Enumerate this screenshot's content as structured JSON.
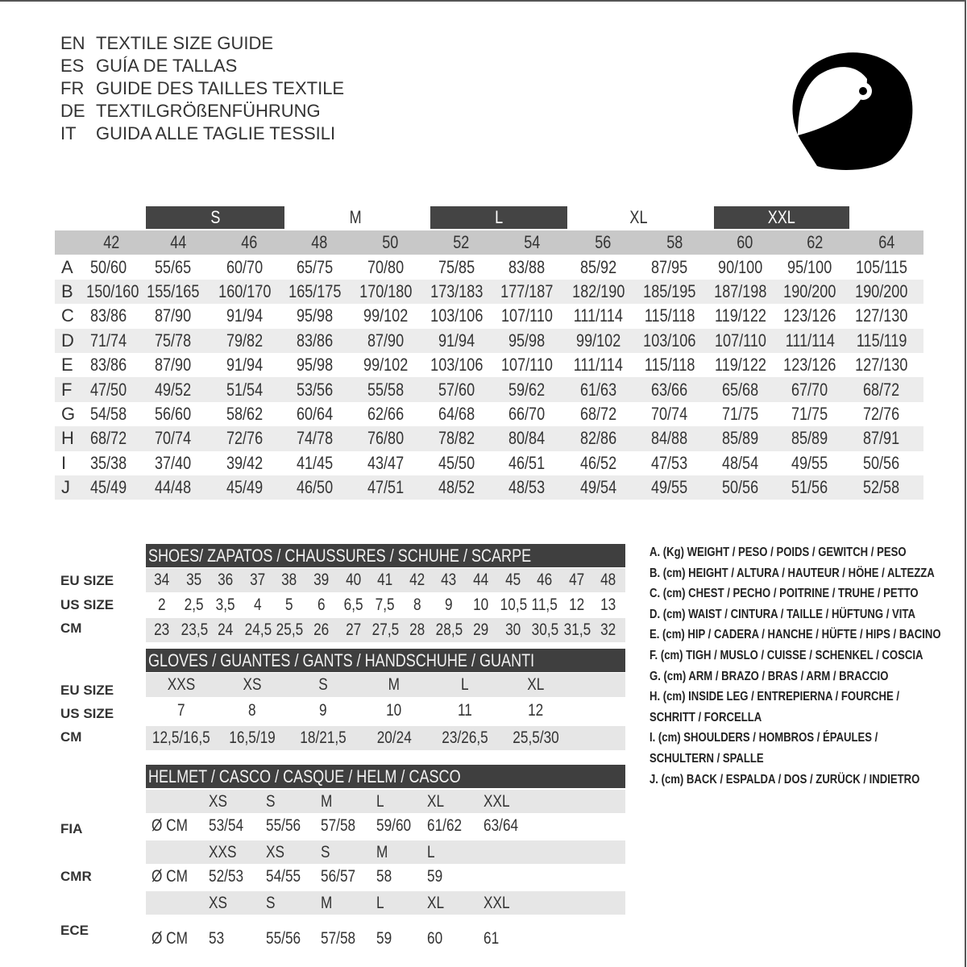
{
  "titles": [
    {
      "code": "EN",
      "text": "TEXTILE SIZE GUIDE"
    },
    {
      "code": "ES",
      "text": "GUÍA DE TALLAS"
    },
    {
      "code": "FR",
      "text": "GUIDE DES TAILLES TEXTILE"
    },
    {
      "code": "DE",
      "text": "TEXTILGRÖßENFÜHRUNG"
    },
    {
      "code": "IT",
      "text": "GUIDA ALLE TAGLIE TESSILI"
    }
  ],
  "icon": "helmet-icon",
  "textile": {
    "size_groups": [
      "S",
      "M",
      "L",
      "XL",
      "XXL"
    ],
    "numbers": [
      "42",
      "44",
      "46",
      "48",
      "50",
      "52",
      "54",
      "56",
      "58",
      "60",
      "62",
      "64"
    ],
    "rows": [
      {
        "label": "A",
        "values": [
          "50/60",
          "55/65",
          "60/70",
          "65/75",
          "70/80",
          "75/85",
          "83/88",
          "85/92",
          "87/95",
          "90/100",
          "95/100",
          "105/115"
        ]
      },
      {
        "label": "B",
        "values": [
          "150/160",
          "155/165",
          "160/170",
          "165/175",
          "170/180",
          "173/183",
          "177/187",
          "182/190",
          "185/195",
          "187/198",
          "190/200",
          "190/200"
        ]
      },
      {
        "label": "C",
        "values": [
          "83/86",
          "87/90",
          "91/94",
          "95/98",
          "99/102",
          "103/106",
          "107/110",
          "111/114",
          "115/118",
          "119/122",
          "123/126",
          "127/130"
        ]
      },
      {
        "label": "D",
        "values": [
          "71/74",
          "75/78",
          "79/82",
          "83/86",
          "87/90",
          "91/94",
          "95/98",
          "99/102",
          "103/106",
          "107/110",
          "111/114",
          "115/119"
        ]
      },
      {
        "label": "E",
        "values": [
          "83/86",
          "87/90",
          "91/94",
          "95/98",
          "99/102",
          "103/106",
          "107/110",
          "111/114",
          "115/118",
          "119/122",
          "123/126",
          "127/130"
        ]
      },
      {
        "label": "F",
        "values": [
          "47/50",
          "49/52",
          "51/54",
          "53/56",
          "55/58",
          "57/60",
          "59/62",
          "61/63",
          "63/66",
          "65/68",
          "67/70",
          "68/72"
        ]
      },
      {
        "label": "G",
        "values": [
          "54/58",
          "56/60",
          "58/62",
          "60/64",
          "62/66",
          "64/68",
          "66/70",
          "68/72",
          "70/74",
          "71/75",
          "71/75",
          "72/76"
        ]
      },
      {
        "label": "H",
        "values": [
          "68/72",
          "70/74",
          "72/76",
          "74/78",
          "76/80",
          "78/82",
          "80/84",
          "82/86",
          "84/88",
          "85/89",
          "85/89",
          "87/91"
        ]
      },
      {
        "label": "I",
        "values": [
          "35/38",
          "37/40",
          "39/42",
          "41/45",
          "43/47",
          "45/50",
          "46/51",
          "46/52",
          "47/53",
          "48/54",
          "49/55",
          "50/56"
        ]
      },
      {
        "label": "J",
        "values": [
          "45/49",
          "44/48",
          "45/49",
          "46/50",
          "47/51",
          "48/52",
          "48/53",
          "49/54",
          "49/55",
          "50/56",
          "51/56",
          "52/58"
        ]
      }
    ]
  },
  "shoes": {
    "title": "SHOES/ ZAPATOS / CHAUSSURES / SCHUHE / SCARPE",
    "labels": [
      "EU SIZE",
      "US SIZE",
      "CM"
    ],
    "rows": [
      [
        "34",
        "35",
        "36",
        "37",
        "38",
        "39",
        "40",
        "41",
        "42",
        "43",
        "44",
        "45",
        "46",
        "47",
        "48"
      ],
      [
        "2",
        "2,5",
        "3,5",
        "4",
        "5",
        "6",
        "6,5",
        "7,5",
        "8",
        "9",
        "10",
        "10,5",
        "11,5",
        "12",
        "13"
      ],
      [
        "23",
        "23,5",
        "24",
        "24,5",
        "25,5",
        "26",
        "27",
        "27,5",
        "28",
        "28,5",
        "29",
        "30",
        "30,5",
        "31,5",
        "32"
      ]
    ]
  },
  "gloves": {
    "title": "GLOVES / GUANTES / GANTS / HANDSCHUHE / GUANTI",
    "labels": [
      "EU SIZE",
      "US SIZE",
      "CM"
    ],
    "rows": [
      [
        "XXS",
        "XS",
        "S",
        "M",
        "L",
        "XL"
      ],
      [
        "7",
        "8",
        "9",
        "10",
        "11",
        "12"
      ],
      [
        "12,5/16,5",
        "16,5/19",
        "18/21,5",
        "20/24",
        "23/26,5",
        "25,5/30"
      ]
    ]
  },
  "helmet": {
    "title": "HELMET / CASCO / CASQUE / HELM / CASCO",
    "unit": "Ø CM",
    "standards": [
      {
        "label": "FIA",
        "sizes": [
          "XS",
          "S",
          "M",
          "L",
          "XL",
          "XXL"
        ],
        "values": [
          "53/54",
          "55/56",
          "57/58",
          "59/60",
          "61/62",
          "63/64"
        ]
      },
      {
        "label": "CMR",
        "sizes": [
          "XXS",
          "XS",
          "S",
          "M",
          "L",
          ""
        ],
        "values": [
          "52/53",
          "54/55",
          "56/57",
          "58",
          "59",
          ""
        ]
      },
      {
        "label": "ECE",
        "sizes": [
          "XS",
          "S",
          "M",
          "L",
          "XL",
          "XXL"
        ],
        "values": [
          "53",
          "55/56",
          "57/58",
          "59",
          "60",
          "61"
        ]
      }
    ]
  },
  "legend": [
    "A. (Kg) WEIGHT / PESO / POIDS / GEWITCH / PESO",
    "B. (cm) HEIGHT / ALTURA / HAUTEUR / HÖHE / ALTEZZA",
    "C. (cm) CHEST / PECHO / POITRINE / TRUHE / PETTO",
    "D. (cm) WAIST / CINTURA / TAILLE / HÜFTUNG / VITA",
    "E. (cm) HIP / CADERA / HANCHE / HÜFTE / HIPS /  BACINO",
    "F.  (cm) TIGH / MUSLO / CUISSE / SCHENKEL / COSCIA",
    "G. (cm) ARM  / BRAZO / BRAS / ARM / BRACCIO",
    "H. (cm) INSIDE LEG / ENTREPIERNA / FOURCHE /",
    "SCHRITT / FORCELLA",
    "I.  (cm) SHOULDERS / HOMBROS / ÉPAULES /",
    "SCHULTERN / SPALLE",
    "J. (cm) BACK / ESPALDA / DOS / ZURÜCK / INDIETRO"
  ]
}
